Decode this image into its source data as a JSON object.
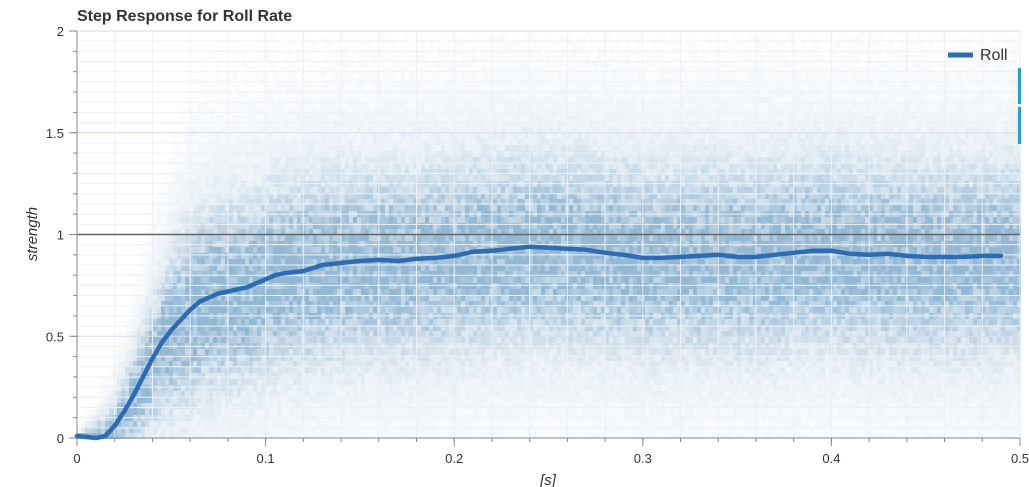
{
  "chart_data": {
    "type": "line",
    "title": "Step Response for Roll Rate",
    "xlabel": "[s]",
    "ylabel": "strength",
    "xlim": [
      0,
      0.5
    ],
    "ylim": [
      0,
      2
    ],
    "x_ticks": [
      "0",
      "0.1",
      "0.2",
      "0.3",
      "0.4",
      "0.5"
    ],
    "y_ticks": [
      "0",
      "0.5",
      "1",
      "1.5",
      "2"
    ],
    "reference_line": 1,
    "grid": true,
    "legend": {
      "position": "top-right"
    },
    "colors": {
      "series": "#2e6bb0",
      "reference": "#666666",
      "grid": "#d8dcef",
      "scatter": "#4a88b8",
      "marker": "#2a9fd6"
    },
    "series": [
      {
        "name": "Roll",
        "x": [
          0,
          0.005,
          0.01,
          0.015,
          0.02,
          0.025,
          0.03,
          0.035,
          0.04,
          0.045,
          0.05,
          0.055,
          0.06,
          0.065,
          0.07,
          0.075,
          0.08,
          0.085,
          0.09,
          0.095,
          0.1,
          0.105,
          0.11,
          0.12,
          0.13,
          0.14,
          0.15,
          0.16,
          0.17,
          0.18,
          0.19,
          0.2,
          0.21,
          0.22,
          0.23,
          0.24,
          0.25,
          0.26,
          0.27,
          0.28,
          0.29,
          0.3,
          0.31,
          0.32,
          0.33,
          0.34,
          0.35,
          0.36,
          0.37,
          0.38,
          0.39,
          0.4,
          0.41,
          0.42,
          0.43,
          0.44,
          0.45,
          0.46,
          0.47,
          0.48,
          0.49
        ],
        "values": [
          0.01,
          0.005,
          0.0,
          0.01,
          0.06,
          0.13,
          0.21,
          0.3,
          0.39,
          0.47,
          0.53,
          0.58,
          0.63,
          0.67,
          0.69,
          0.71,
          0.72,
          0.73,
          0.74,
          0.76,
          0.78,
          0.8,
          0.81,
          0.82,
          0.85,
          0.86,
          0.87,
          0.875,
          0.87,
          0.88,
          0.885,
          0.895,
          0.915,
          0.92,
          0.93,
          0.94,
          0.935,
          0.93,
          0.925,
          0.91,
          0.9,
          0.885,
          0.885,
          0.89,
          0.895,
          0.9,
          0.89,
          0.89,
          0.9,
          0.91,
          0.92,
          0.92,
          0.905,
          0.9,
          0.905,
          0.895,
          0.89,
          0.89,
          0.89,
          0.895,
          0.895
        ]
      }
    ]
  }
}
